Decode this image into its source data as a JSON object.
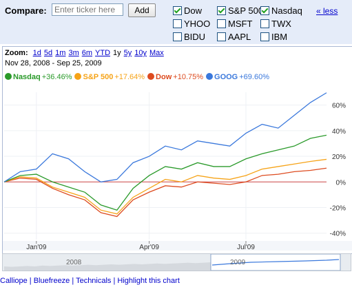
{
  "compare": {
    "label": "Compare:",
    "placeholder": "Enter ticker here",
    "add_label": "Add",
    "less_label": "« less",
    "items": [
      {
        "label": "Dow",
        "checked": true
      },
      {
        "label": "S&P 500",
        "checked": true
      },
      {
        "label": "Nasdaq",
        "checked": true
      },
      {
        "label": "YHOO",
        "checked": false
      },
      {
        "label": "MSFT",
        "checked": false
      },
      {
        "label": "TWX",
        "checked": false
      },
      {
        "label": "BIDU",
        "checked": false
      },
      {
        "label": "AAPL",
        "checked": false
      },
      {
        "label": "IBM",
        "checked": false
      }
    ]
  },
  "zoom": {
    "label": "Zoom:",
    "options": [
      "1d",
      "5d",
      "1m",
      "3m",
      "6m",
      "YTD",
      "1y",
      "5y",
      "10y",
      "Max"
    ],
    "selected": "1y"
  },
  "date_range": {
    "start": "Nov 28, 2008",
    "end": "Sep 25, 2009",
    "separator": " - "
  },
  "legend": [
    {
      "name": "Nasdaq",
      "change": "+36.46%",
      "color": "#2a9a2a"
    },
    {
      "name": "S&P 500",
      "change": "+17.64%",
      "color": "#f6a317"
    },
    {
      "name": "Dow",
      "change": "+10.75%",
      "color": "#dd4b1f"
    },
    {
      "name": "GOOG",
      "change": "+69.60%",
      "color": "#3a78dc"
    }
  ],
  "navigator": {
    "year_labels": [
      "2008",
      "2009"
    ]
  },
  "bottom_links": "Calliope | Bluefreeze | Technicals | Highlight this chart",
  "chart_data": {
    "type": "line",
    "x": [
      "Nov 28, 2008",
      "Dec 15",
      "Jan 1",
      "Jan 15",
      "Feb 1",
      "Feb 15",
      "Mar 1",
      "Mar 10",
      "Mar 25",
      "Apr 10",
      "Apr 25",
      "May 10",
      "May 25",
      "Jun 10",
      "Jun 25",
      "Jul 10",
      "Jul 25",
      "Aug 10",
      "Aug 25",
      "Sep 10",
      "Sep 25, 2009"
    ],
    "x_tick_labels": [
      "Jan'09",
      "Apr'09",
      "Jul'09"
    ],
    "y_tick_labels": [
      "60%",
      "40%",
      "20%",
      "0%",
      "-20%",
      "-40%"
    ],
    "ylim": [
      -45,
      70
    ],
    "grid": true,
    "legend_position": "top-left",
    "series": [
      {
        "name": "GOOG",
        "color": "#3a78dc",
        "values": [
          0,
          8,
          10,
          22,
          18,
          8,
          0,
          2,
          15,
          20,
          28,
          25,
          32,
          30,
          28,
          38,
          45,
          42,
          52,
          62,
          69.6
        ]
      },
      {
        "name": "Nasdaq",
        "color": "#2a9a2a",
        "values": [
          0,
          5,
          6,
          0,
          -4,
          -8,
          -18,
          -22,
          -5,
          5,
          12,
          10,
          15,
          12,
          12,
          18,
          22,
          25,
          28,
          34,
          36.46
        ]
      },
      {
        "name": "S&P 500",
        "color": "#f6a317",
        "values": [
          0,
          4,
          3,
          -4,
          -8,
          -12,
          -22,
          -25,
          -12,
          -5,
          2,
          0,
          5,
          3,
          2,
          5,
          10,
          12,
          14,
          16,
          17.64
        ]
      },
      {
        "name": "Dow",
        "color": "#dd4b1f",
        "values": [
          0,
          3,
          2,
          -5,
          -10,
          -14,
          -24,
          -27,
          -14,
          -8,
          -3,
          -4,
          0,
          -1,
          -2,
          0,
          5,
          6,
          8,
          9,
          10.75
        ]
      }
    ]
  }
}
